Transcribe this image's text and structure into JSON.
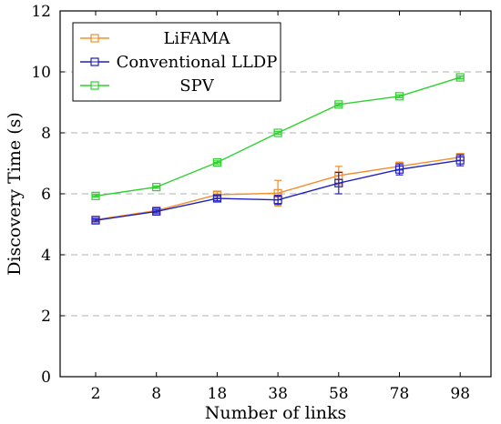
{
  "chart_data": {
    "type": "line",
    "xlabel": "Number of links",
    "ylabel": "Discovery Time (s)",
    "categories": [
      "2",
      "8",
      "18",
      "38",
      "58",
      "78",
      "98"
    ],
    "ylim": [
      0,
      12
    ],
    "yticks": [
      0,
      2,
      4,
      6,
      8,
      10,
      12
    ],
    "grid": "horizontal-dashed",
    "legend_position": "top-left",
    "series": [
      {
        "name": "LiFAMA",
        "color": "#f28e2b",
        "values": [
          5.15,
          5.45,
          5.97,
          6.02,
          6.6,
          6.9,
          7.2
        ],
        "errors": [
          0.05,
          0.06,
          0.1,
          0.42,
          0.3,
          0.14,
          0.12
        ]
      },
      {
        "name": "Conventional LLDP",
        "color": "#1f1fbf",
        "values": [
          5.13,
          5.42,
          5.85,
          5.8,
          6.35,
          6.8,
          7.1
        ],
        "errors": [
          0.05,
          0.05,
          0.08,
          0.15,
          0.35,
          0.18,
          0.18
        ]
      },
      {
        "name": "SPV",
        "color": "#2fd12f",
        "values": [
          5.93,
          6.22,
          7.03,
          8.0,
          8.93,
          9.2,
          9.82
        ],
        "errors": [
          0.04,
          0.04,
          0.05,
          0.05,
          0.05,
          0.05,
          0.05
        ]
      }
    ]
  }
}
